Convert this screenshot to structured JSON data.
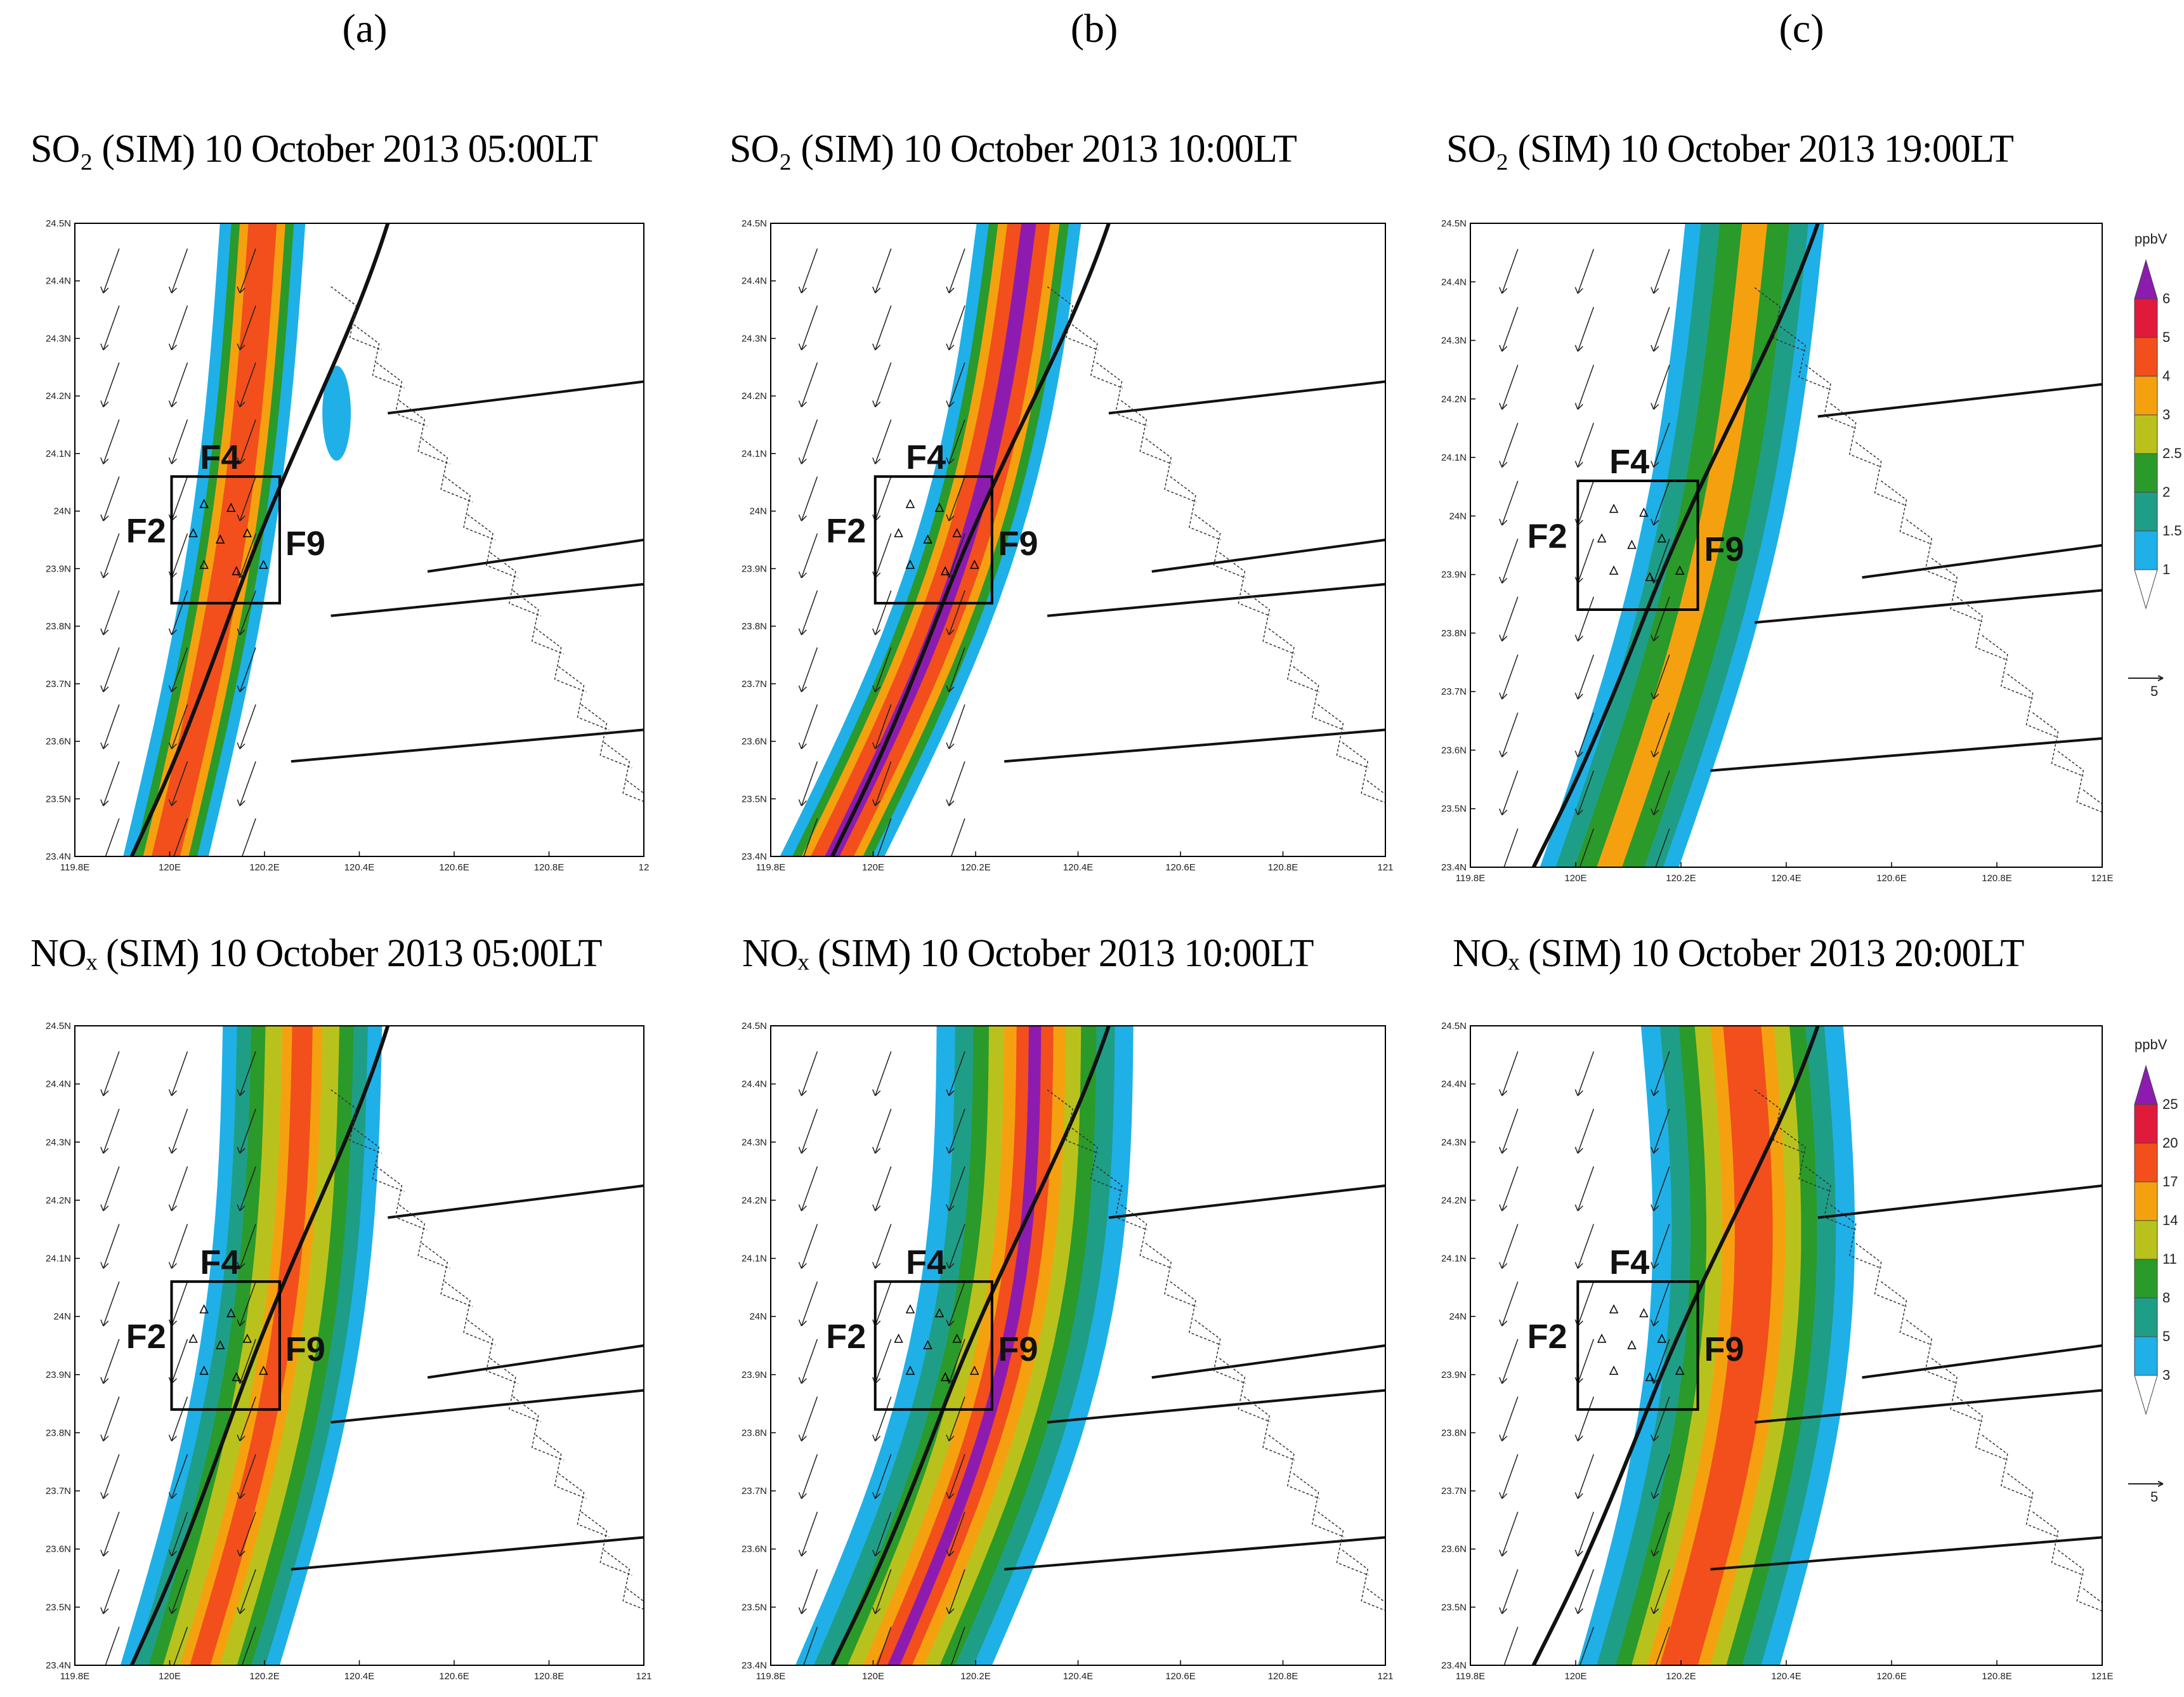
{
  "column_labels": [
    "(a)",
    "(b)",
    "(c)"
  ],
  "panels": [
    {
      "id": "so2-0500",
      "title": "SO₂ (SIM) 10 October 2013 05:00LT",
      "species": "SO2",
      "time": "05:00LT",
      "x_ticks": [
        "119.8E",
        "120E",
        "120.2E",
        "120.4E",
        "120.6E",
        "120.8E",
        "12"
      ],
      "y_ticks": [
        "24.5N",
        "24.4N",
        "24.3N",
        "24.2N",
        "24.1N",
        "24N",
        "23.9N",
        "23.8N",
        "23.7N",
        "23.6N",
        "23.5N",
        "23.4N"
      ],
      "labels": {
        "f4": "F4",
        "f2": "F2",
        "f9": "F9"
      }
    },
    {
      "id": "so2-1000",
      "title": "SO₂ (SIM) 10 October 2013 10:00LT",
      "species": "SO2",
      "time": "10:00LT",
      "x_ticks": [
        "119.8E",
        "120E",
        "120.2E",
        "120.4E",
        "120.6E",
        "120.8E",
        "121"
      ],
      "y_ticks": [
        "24.5N",
        "24.4N",
        "24.3N",
        "24.2N",
        "24.1N",
        "24N",
        "23.9N",
        "23.8N",
        "23.7N",
        "23.6N",
        "23.5N",
        "23.4N"
      ],
      "labels": {
        "f4": "F4",
        "f2": "F2",
        "f9": "F9"
      }
    },
    {
      "id": "so2-1900",
      "title": "SO₂ (SIM) 10 October 2013 19:00LT",
      "species": "SO2",
      "time": "19:00LT",
      "x_ticks": [
        "119.8E",
        "120E",
        "120.2E",
        "120.4E",
        "120.6E",
        "120.8E",
        "121E"
      ],
      "y_ticks": [
        "24.5N",
        "24.4N",
        "24.3N",
        "24.2N",
        "24.1N",
        "24N",
        "23.9N",
        "23.8N",
        "23.7N",
        "23.6N",
        "23.5N",
        "23.4N"
      ],
      "labels": {
        "f4": "F4",
        "f2": "F2",
        "f9": "F9"
      }
    },
    {
      "id": "nox-0500",
      "title": "NOₓ (SIM) 10 October 2013 05:00LT",
      "species": "NOx",
      "time": "05:00LT",
      "x_ticks": [
        "119.8E",
        "120E",
        "120.2E",
        "120.4E",
        "120.6E",
        "120.8E",
        "121"
      ],
      "y_ticks": [
        "24.5N",
        "24.4N",
        "24.3N",
        "24.2N",
        "24.1N",
        "24N",
        "23.9N",
        "23.8N",
        "23.7N",
        "23.6N",
        "23.5N",
        "23.4N"
      ],
      "labels": {
        "f4": "F4",
        "f2": "F2",
        "f9": "F9"
      }
    },
    {
      "id": "nox-1000",
      "title": "NOₓ (SIM) 10 October 2013 10:00LT",
      "species": "NOx",
      "time": "10:00LT",
      "x_ticks": [
        "119.8E",
        "120E",
        "120.2E",
        "120.4E",
        "120.6E",
        "120.8E",
        "121"
      ],
      "y_ticks": [
        "24.5N",
        "24.4N",
        "24.3N",
        "24.2N",
        "24.1N",
        "24N",
        "23.9N",
        "23.8N",
        "23.7N",
        "23.6N",
        "23.5N",
        "23.4N"
      ],
      "labels": {
        "f4": "F4",
        "f2": "F2",
        "f9": "F9"
      }
    },
    {
      "id": "nox-2000",
      "title": "NOₓ (SIM) 10 October 2013 20:00LT",
      "species": "NOx",
      "time": "20:00LT",
      "x_ticks": [
        "119.8E",
        "120E",
        "120.2E",
        "120.4E",
        "120.6E",
        "120.8E",
        "121E"
      ],
      "y_ticks": [
        "24.5N",
        "24.4N",
        "24.3N",
        "24.2N",
        "24.1N",
        "24N",
        "23.9N",
        "23.8N",
        "23.7N",
        "23.6N",
        "23.5N",
        "23.4N"
      ],
      "labels": {
        "f4": "F4",
        "f2": "F2",
        "f9": "F9"
      }
    }
  ],
  "colorbars": {
    "so2": {
      "unit": "ppbV",
      "levels": [
        "1",
        "1.5",
        "2",
        "2.5",
        "3",
        "4",
        "5",
        "6"
      ],
      "vector_ref": "5"
    },
    "nox": {
      "unit": "ppbV",
      "levels": [
        "3",
        "5",
        "8",
        "11",
        "14",
        "17",
        "20",
        "25"
      ],
      "vector_ref": "5"
    }
  },
  "colors": {
    "level1": "#1fb0e8",
    "level2": "#1f9e87",
    "level3": "#2a9a2a",
    "level4": "#b9c21c",
    "level5": "#f5a10f",
    "level6": "#f24f1d",
    "level7": "#e01a3a",
    "level8": "#8e1bb0"
  }
}
